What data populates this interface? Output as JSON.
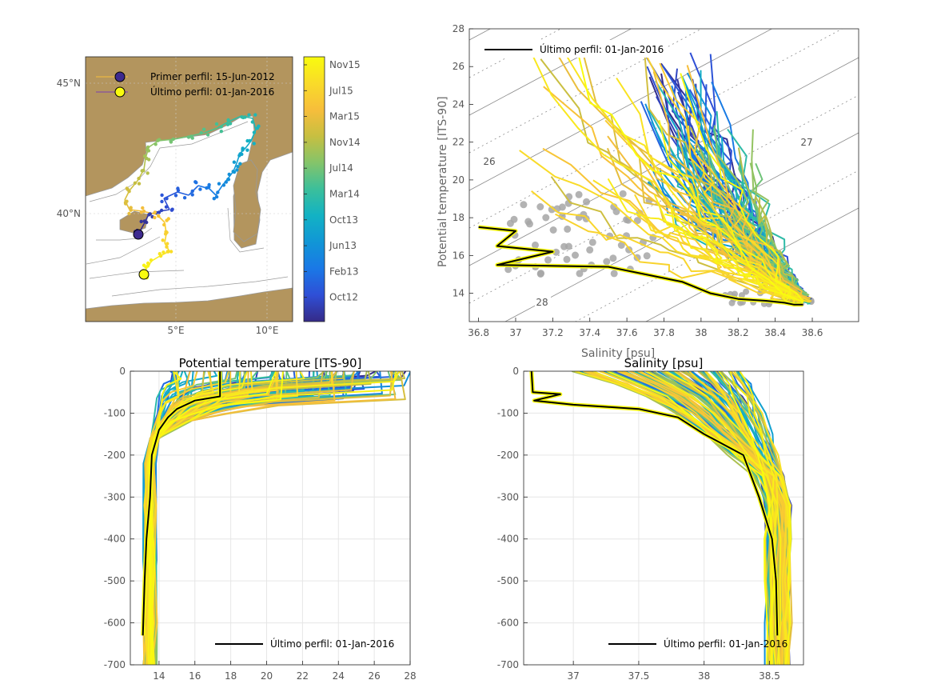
{
  "colors": {
    "land": "#b3955e",
    "sea": "#ffffff",
    "coast": "#999999",
    "latest": "#000000",
    "climatology": "#a6a6a6",
    "parula": [
      "#352a87",
      "#2f4fd6",
      "#1a78e6",
      "#1196d6",
      "#12b2c4",
      "#3bbf9b",
      "#84c46a",
      "#c7bf41",
      "#f7be3b",
      "#f9db29",
      "#f9fb0e"
    ]
  },
  "map": {
    "lat_ticks": [
      "40°N",
      "45°N"
    ],
    "lon_ticks": [
      "5°E",
      "10°E"
    ],
    "legend": [
      {
        "label": "Primer perfil: 15-Jun-2012",
        "color": "#3e2a8f",
        "icon": "circle-marker"
      },
      {
        "label": "Último perfil: 01-Jan-2016",
        "color": "#f9fb0e",
        "icon": "circle-marker"
      }
    ]
  },
  "colorbar": {
    "ticks": [
      "Nov15",
      "Jul15",
      "Mar15",
      "Nov14",
      "Jul14",
      "Mar14",
      "Oct13",
      "Jun13",
      "Feb13",
      "Oct12"
    ]
  },
  "chart_data": [
    {
      "type": "line",
      "name": "ts-diagram",
      "title": "",
      "xlabel": "Salinity [psu]",
      "ylabel": "Potential temperature [ITS-90]",
      "xlim": [
        36.75,
        38.85
      ],
      "ylim": [
        12.5,
        28
      ],
      "xticks": [
        "36.8",
        "37",
        "37.2",
        "37.4",
        "37.6",
        "37.8",
        "38",
        "38.2",
        "38.4",
        "38.6"
      ],
      "yticks": [
        "14",
        "16",
        "18",
        "20",
        "22",
        "24",
        "26",
        "28"
      ],
      "density_labels": [
        "26",
        "27",
        "28"
      ],
      "legend": {
        "label": "Último perfil: 01-Jan-2016",
        "position": "top-left"
      },
      "latest_profile": {
        "salinity": [
          36.8,
          37.0,
          36.9,
          37.2,
          36.9,
          37.5,
          37.9,
          38.05,
          38.2,
          38.35,
          38.45,
          38.5,
          38.55
        ],
        "temperature": [
          17.5,
          17.3,
          16.5,
          16.2,
          15.5,
          15.4,
          14.6,
          14.0,
          13.7,
          13.6,
          13.5,
          13.4,
          13.4
        ]
      }
    },
    {
      "type": "line",
      "name": "temperature-profile",
      "title": "Potential temperature [ITS-90]",
      "xlabel": "",
      "ylabel": "",
      "xlim": [
        12.4,
        28
      ],
      "ylim": [
        -700,
        0
      ],
      "xticks": [
        "14",
        "16",
        "18",
        "20",
        "22",
        "24",
        "26",
        "28"
      ],
      "yticks": [
        "0",
        "-100",
        "-200",
        "-300",
        "-400",
        "-500",
        "-600",
        "-700"
      ],
      "legend": {
        "label": "Último perfil: 01-Jan-2016",
        "position": "bottom-right"
      },
      "latest_profile": {
        "temperature": [
          17.4,
          17.4,
          16.0,
          15.0,
          14.5,
          14.0,
          13.6,
          13.5,
          13.3,
          13.2,
          13.1
        ],
        "depth": [
          0,
          -60,
          -70,
          -90,
          -110,
          -140,
          -200,
          -300,
          -400,
          -500,
          -630
        ]
      }
    },
    {
      "type": "line",
      "name": "salinity-profile",
      "title": "Salinity [psu]",
      "xlabel": "",
      "ylabel": "",
      "xlim": [
        36.62,
        38.76
      ],
      "ylim": [
        -700,
        0
      ],
      "xticks": [
        "37",
        "37.5",
        "38",
        "38.5"
      ],
      "yticks": [
        "0",
        "-100",
        "-200",
        "-300",
        "-400",
        "-500",
        "-600",
        "-700"
      ],
      "legend": {
        "label": "Último perfil: 01-Jan-2016",
        "position": "bottom-right"
      },
      "latest_profile": {
        "salinity": [
          36.68,
          36.69,
          36.9,
          36.7,
          37.0,
          37.5,
          37.8,
          38.0,
          38.3,
          38.42,
          38.52,
          38.55,
          38.56
        ],
        "depth": [
          0,
          -50,
          -55,
          -70,
          -80,
          -90,
          -110,
          -150,
          -200,
          -300,
          -400,
          -500,
          -630
        ]
      }
    }
  ]
}
